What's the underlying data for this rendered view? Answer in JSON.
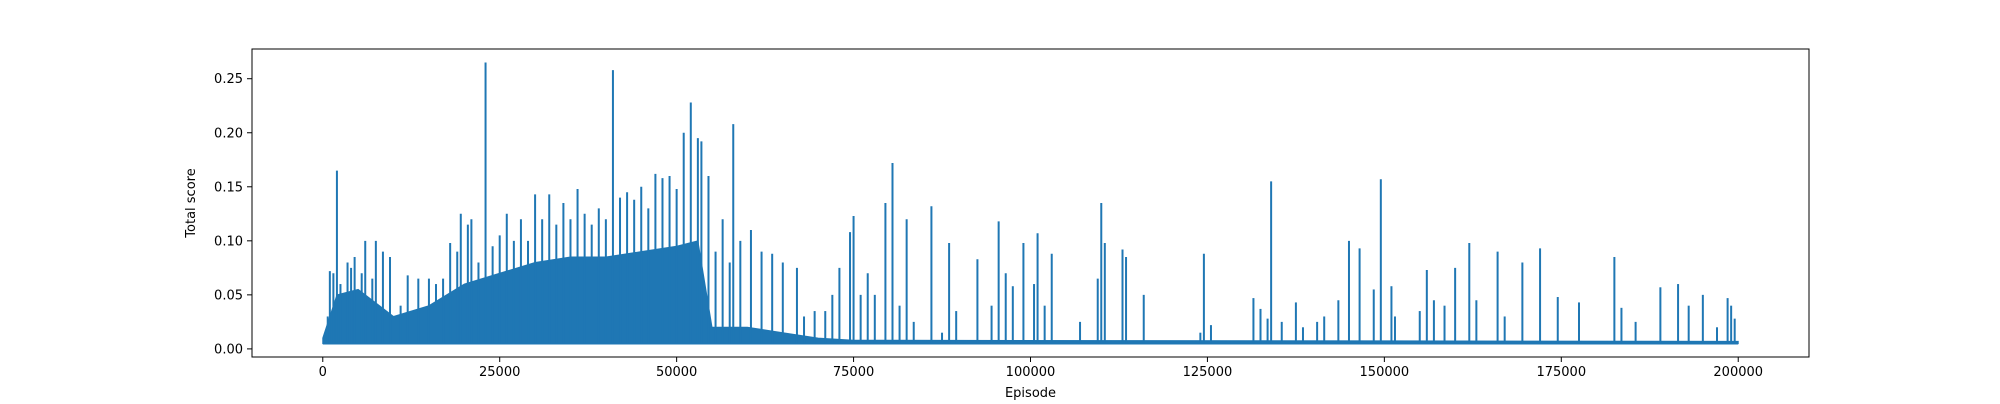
{
  "chart_data": {
    "type": "line",
    "title": "",
    "xlabel": "Episode",
    "ylabel": "Total score",
    "xlim": [
      -10000,
      210000
    ],
    "ylim": [
      -0.0075,
      0.2775
    ],
    "xticks": [
      0,
      25000,
      50000,
      75000,
      100000,
      125000,
      150000,
      175000,
      200000
    ],
    "xtick_labels": [
      "0",
      "25000",
      "50000",
      "75000",
      "100000",
      "125000",
      "150000",
      "175000",
      "200000"
    ],
    "yticks": [
      0.0,
      0.05,
      0.1,
      0.15,
      0.2,
      0.25
    ],
    "ytick_labels": [
      "0.00",
      "0.05",
      "0.10",
      "0.15",
      "0.20",
      "0.25"
    ],
    "grid": false,
    "legend": "none",
    "series": [
      {
        "color": "#1f77b4",
        "baseline": 0.005,
        "dense_band": [
          {
            "x": 0,
            "y": 0.01
          },
          {
            "x": 2000,
            "y": 0.05
          },
          {
            "x": 5000,
            "y": 0.055
          },
          {
            "x": 10000,
            "y": 0.03
          },
          {
            "x": 15000,
            "y": 0.04
          },
          {
            "x": 20000,
            "y": 0.06
          },
          {
            "x": 25000,
            "y": 0.07
          },
          {
            "x": 30000,
            "y": 0.08
          },
          {
            "x": 35000,
            "y": 0.085
          },
          {
            "x": 40000,
            "y": 0.085
          },
          {
            "x": 45000,
            "y": 0.09
          },
          {
            "x": 50000,
            "y": 0.095
          },
          {
            "x": 53000,
            "y": 0.1
          },
          {
            "x": 54000,
            "y": 0.06
          },
          {
            "x": 55000,
            "y": 0.02
          },
          {
            "x": 60000,
            "y": 0.02
          },
          {
            "x": 65000,
            "y": 0.015
          },
          {
            "x": 70000,
            "y": 0.01
          },
          {
            "x": 75000,
            "y": 0.008
          },
          {
            "x": 200000,
            "y": 0.007
          }
        ],
        "peaks": [
          {
            "x": 700,
            "y": 0.03
          },
          {
            "x": 1000,
            "y": 0.072
          },
          {
            "x": 1500,
            "y": 0.07
          },
          {
            "x": 2000,
            "y": 0.165
          },
          {
            "x": 2500,
            "y": 0.06
          },
          {
            "x": 3500,
            "y": 0.08
          },
          {
            "x": 4000,
            "y": 0.075
          },
          {
            "x": 4500,
            "y": 0.085
          },
          {
            "x": 5500,
            "y": 0.07
          },
          {
            "x": 6000,
            "y": 0.1
          },
          {
            "x": 7000,
            "y": 0.065
          },
          {
            "x": 7500,
            "y": 0.1
          },
          {
            "x": 8500,
            "y": 0.09
          },
          {
            "x": 9500,
            "y": 0.085
          },
          {
            "x": 11000,
            "y": 0.04
          },
          {
            "x": 12000,
            "y": 0.068
          },
          {
            "x": 13500,
            "y": 0.065
          },
          {
            "x": 15000,
            "y": 0.065
          },
          {
            "x": 16000,
            "y": 0.06
          },
          {
            "x": 17000,
            "y": 0.065
          },
          {
            "x": 18000,
            "y": 0.098
          },
          {
            "x": 19000,
            "y": 0.09
          },
          {
            "x": 19500,
            "y": 0.125
          },
          {
            "x": 20500,
            "y": 0.115
          },
          {
            "x": 21000,
            "y": 0.12
          },
          {
            "x": 22000,
            "y": 0.08
          },
          {
            "x": 23000,
            "y": 0.265
          },
          {
            "x": 24000,
            "y": 0.095
          },
          {
            "x": 25000,
            "y": 0.105
          },
          {
            "x": 26000,
            "y": 0.125
          },
          {
            "x": 27000,
            "y": 0.1
          },
          {
            "x": 28000,
            "y": 0.12
          },
          {
            "x": 29000,
            "y": 0.1
          },
          {
            "x": 30000,
            "y": 0.143
          },
          {
            "x": 31000,
            "y": 0.12
          },
          {
            "x": 32000,
            "y": 0.143
          },
          {
            "x": 33000,
            "y": 0.115
          },
          {
            "x": 34000,
            "y": 0.135
          },
          {
            "x": 35000,
            "y": 0.12
          },
          {
            "x": 36000,
            "y": 0.148
          },
          {
            "x": 37000,
            "y": 0.125
          },
          {
            "x": 38000,
            "y": 0.115
          },
          {
            "x": 39000,
            "y": 0.13
          },
          {
            "x": 40000,
            "y": 0.12
          },
          {
            "x": 41000,
            "y": 0.258
          },
          {
            "x": 42000,
            "y": 0.14
          },
          {
            "x": 43000,
            "y": 0.145
          },
          {
            "x": 44000,
            "y": 0.138
          },
          {
            "x": 45000,
            "y": 0.15
          },
          {
            "x": 46000,
            "y": 0.13
          },
          {
            "x": 47000,
            "y": 0.162
          },
          {
            "x": 48000,
            "y": 0.158
          },
          {
            "x": 49000,
            "y": 0.16
          },
          {
            "x": 50000,
            "y": 0.148
          },
          {
            "x": 51000,
            "y": 0.2
          },
          {
            "x": 52000,
            "y": 0.228
          },
          {
            "x": 53000,
            "y": 0.195
          },
          {
            "x": 53500,
            "y": 0.192
          },
          {
            "x": 54500,
            "y": 0.16
          },
          {
            "x": 55500,
            "y": 0.09
          },
          {
            "x": 56500,
            "y": 0.12
          },
          {
            "x": 57500,
            "y": 0.08
          },
          {
            "x": 58000,
            "y": 0.208
          },
          {
            "x": 59000,
            "y": 0.1
          },
          {
            "x": 60500,
            "y": 0.11
          },
          {
            "x": 62000,
            "y": 0.09
          },
          {
            "x": 63500,
            "y": 0.088
          },
          {
            "x": 65000,
            "y": 0.08
          },
          {
            "x": 67000,
            "y": 0.075
          },
          {
            "x": 68000,
            "y": 0.03
          },
          {
            "x": 69500,
            "y": 0.035
          },
          {
            "x": 71000,
            "y": 0.035
          },
          {
            "x": 72000,
            "y": 0.05
          },
          {
            "x": 73000,
            "y": 0.075
          },
          {
            "x": 74500,
            "y": 0.108
          },
          {
            "x": 75000,
            "y": 0.123
          },
          {
            "x": 76000,
            "y": 0.05
          },
          {
            "x": 77000,
            "y": 0.07
          },
          {
            "x": 78000,
            "y": 0.05
          },
          {
            "x": 79500,
            "y": 0.135
          },
          {
            "x": 80500,
            "y": 0.172
          },
          {
            "x": 81500,
            "y": 0.04
          },
          {
            "x": 82500,
            "y": 0.12
          },
          {
            "x": 83500,
            "y": 0.025
          },
          {
            "x": 86000,
            "y": 0.132
          },
          {
            "x": 87500,
            "y": 0.015
          },
          {
            "x": 88500,
            "y": 0.098
          },
          {
            "x": 89500,
            "y": 0.035
          },
          {
            "x": 92500,
            "y": 0.083
          },
          {
            "x": 94500,
            "y": 0.04
          },
          {
            "x": 95500,
            "y": 0.118
          },
          {
            "x": 96500,
            "y": 0.07
          },
          {
            "x": 97500,
            "y": 0.058
          },
          {
            "x": 99000,
            "y": 0.098
          },
          {
            "x": 100500,
            "y": 0.06
          },
          {
            "x": 101000,
            "y": 0.107
          },
          {
            "x": 102000,
            "y": 0.04
          },
          {
            "x": 103000,
            "y": 0.088
          },
          {
            "x": 107000,
            "y": 0.025
          },
          {
            "x": 109500,
            "y": 0.065
          },
          {
            "x": 110000,
            "y": 0.135
          },
          {
            "x": 110500,
            "y": 0.098
          },
          {
            "x": 113000,
            "y": 0.092
          },
          {
            "x": 113500,
            "y": 0.085
          },
          {
            "x": 116000,
            "y": 0.05
          },
          {
            "x": 124000,
            "y": 0.015
          },
          {
            "x": 124500,
            "y": 0.088
          },
          {
            "x": 125500,
            "y": 0.022
          },
          {
            "x": 131500,
            "y": 0.047
          },
          {
            "x": 132500,
            "y": 0.037
          },
          {
            "x": 133500,
            "y": 0.028
          },
          {
            "x": 134000,
            "y": 0.155
          },
          {
            "x": 135500,
            "y": 0.025
          },
          {
            "x": 137500,
            "y": 0.043
          },
          {
            "x": 138500,
            "y": 0.02
          },
          {
            "x": 140500,
            "y": 0.025
          },
          {
            "x": 141500,
            "y": 0.03
          },
          {
            "x": 143500,
            "y": 0.045
          },
          {
            "x": 145000,
            "y": 0.1
          },
          {
            "x": 146500,
            "y": 0.093
          },
          {
            "x": 148500,
            "y": 0.055
          },
          {
            "x": 149500,
            "y": 0.157
          },
          {
            "x": 151000,
            "y": 0.058
          },
          {
            "x": 151500,
            "y": 0.03
          },
          {
            "x": 155000,
            "y": 0.035
          },
          {
            "x": 156000,
            "y": 0.073
          },
          {
            "x": 157000,
            "y": 0.045
          },
          {
            "x": 158500,
            "y": 0.04
          },
          {
            "x": 160000,
            "y": 0.075
          },
          {
            "x": 162000,
            "y": 0.098
          },
          {
            "x": 163000,
            "y": 0.045
          },
          {
            "x": 166000,
            "y": 0.09
          },
          {
            "x": 167000,
            "y": 0.03
          },
          {
            "x": 169500,
            "y": 0.08
          },
          {
            "x": 172000,
            "y": 0.093
          },
          {
            "x": 174500,
            "y": 0.048
          },
          {
            "x": 177500,
            "y": 0.043
          },
          {
            "x": 182500,
            "y": 0.085
          },
          {
            "x": 183500,
            "y": 0.038
          },
          {
            "x": 185500,
            "y": 0.025
          },
          {
            "x": 189000,
            "y": 0.057
          },
          {
            "x": 191500,
            "y": 0.06
          },
          {
            "x": 193000,
            "y": 0.04
          },
          {
            "x": 195000,
            "y": 0.05
          },
          {
            "x": 197000,
            "y": 0.02
          },
          {
            "x": 198500,
            "y": 0.047
          },
          {
            "x": 199000,
            "y": 0.04
          },
          {
            "x": 199500,
            "y": 0.028
          }
        ]
      }
    ]
  }
}
